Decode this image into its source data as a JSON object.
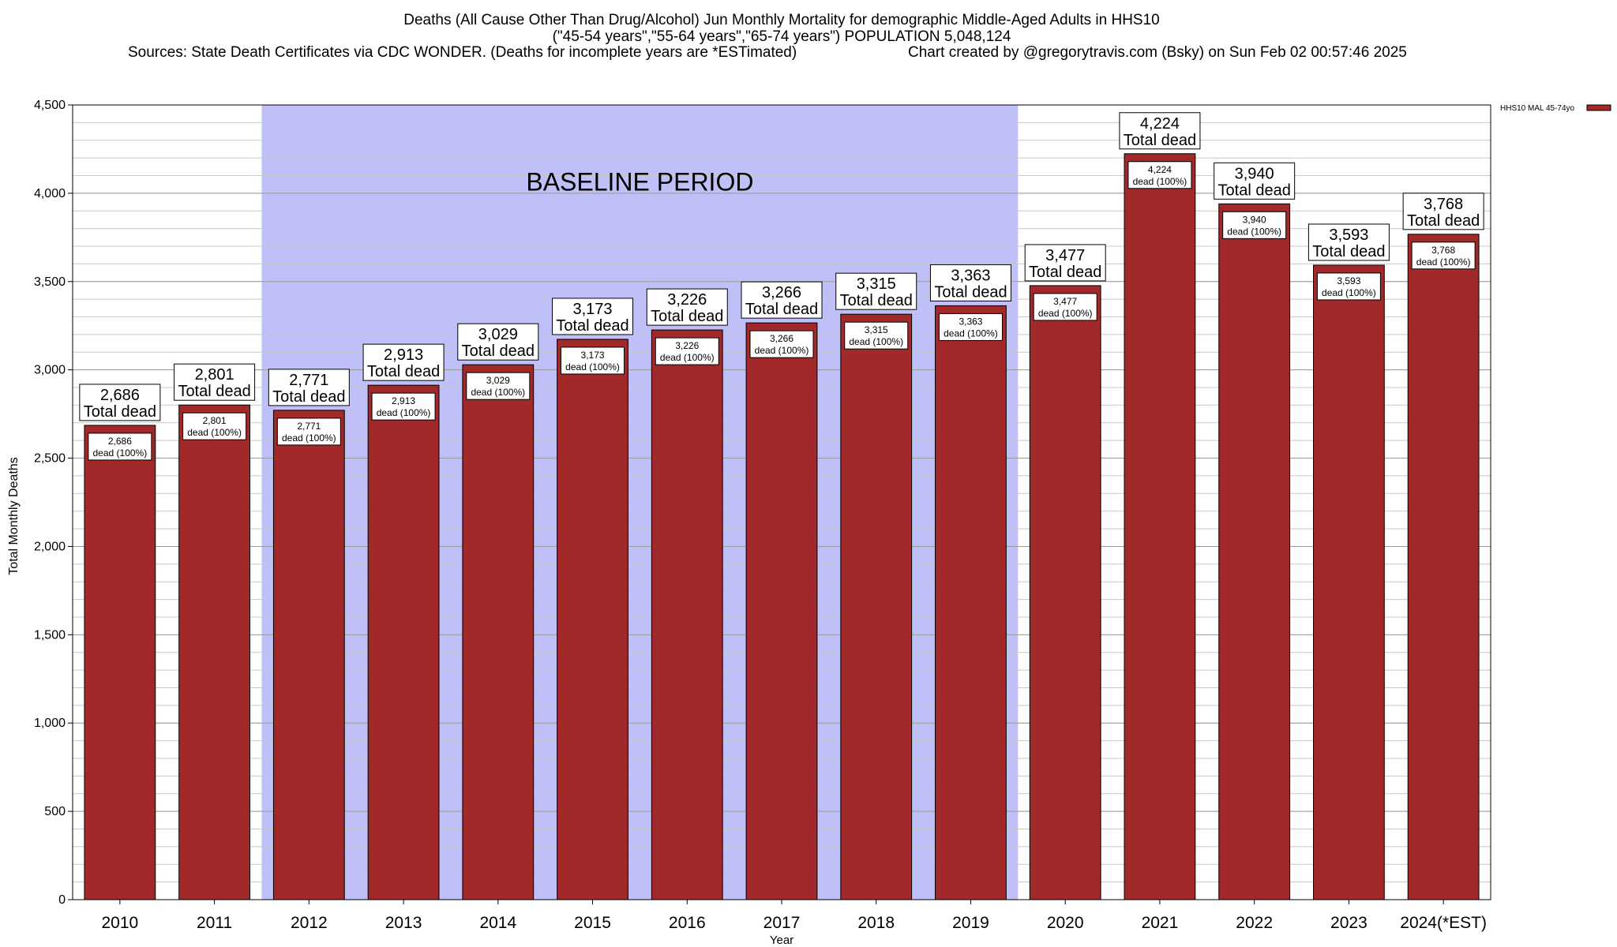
{
  "header": {
    "title_line1": "Deaths (All Cause Other Than Drug/Alcohol) Jun Monthly Mortality for demographic Middle-Aged Adults in HHS10",
    "title_line2": "(\"45-54 years\",\"55-64 years\",\"65-74 years\") POPULATION 5,048,124",
    "sources": "Sources: State Death Certificates via CDC WONDER. (Deaths for incomplete years are *ESTimated)",
    "credit": "Chart created by @gregorytravis.com (Bsky) on Sun Feb 02 00:57:46 2025"
  },
  "chart_data": {
    "type": "bar",
    "categories": [
      "2010",
      "2011",
      "2012",
      "2013",
      "2014",
      "2015",
      "2016",
      "2017",
      "2018",
      "2019",
      "2020",
      "2021",
      "2022",
      "2023",
      "2024(*EST)"
    ],
    "series": [
      {
        "name": "HHS10 MAL 45-74yo",
        "color": "#a2292a",
        "values": [
          2686,
          2801,
          2771,
          2913,
          3029,
          3173,
          3226,
          3266,
          3315,
          3363,
          3477,
          4224,
          3940,
          3593,
          3768
        ]
      }
    ],
    "value_labels": [
      "2,686",
      "2,801",
      "2,771",
      "2,913",
      "3,029",
      "3,173",
      "3,226",
      "3,266",
      "3,315",
      "3,363",
      "3,477",
      "4,224",
      "3,940",
      "3,593",
      "3,768"
    ],
    "outer_label_suffix": "Total dead",
    "inner_label_suffix": "dead (100%)",
    "xlabel": "Year",
    "ylabel": "Total Monthly Deaths",
    "ylim": [
      0,
      4500
    ],
    "yticks": [
      0,
      500,
      1000,
      1500,
      2000,
      2500,
      3000,
      3500,
      4000,
      4500
    ],
    "ytick_labels": [
      "0",
      "500",
      "1,000",
      "1,500",
      "2,000",
      "2,500",
      "3,000",
      "3,500",
      "4,000",
      "4,500"
    ],
    "minor_grid_step": 100,
    "grid": true,
    "legend_position": "top-right (outside plot)",
    "shaded_region": {
      "label": "BASELINE PERIOD",
      "from_category": "2012",
      "to_category": "2019",
      "color": "#c0c0f8"
    }
  }
}
